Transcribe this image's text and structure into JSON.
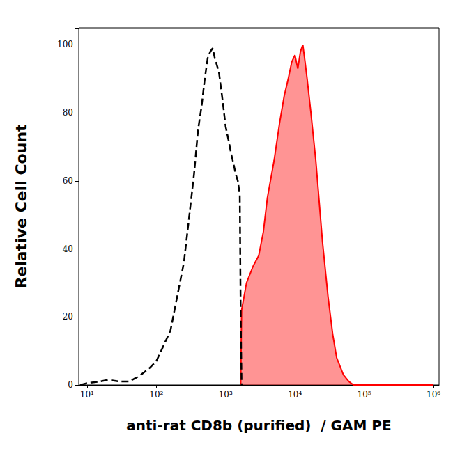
{
  "chart_data": {
    "type": "line",
    "x_label": "anti-rat CD8b (purified)  / GAM PE",
    "y_label": "Relative Cell Count",
    "log": "x",
    "grid": false,
    "xlim": [
      7.6,
      1200000
    ],
    "xticks": [
      {
        "value": 10,
        "label": "10¹"
      },
      {
        "value": 100,
        "label": "10²"
      },
      {
        "value": 1000,
        "label": "10³"
      },
      {
        "value": 10000,
        "label": "10⁴"
      },
      {
        "value": 100000,
        "label": "10⁵"
      },
      {
        "value": 1000000,
        "label": "10⁶"
      }
    ],
    "ylim": [
      0,
      105
    ],
    "yticks": [
      0,
      20,
      40,
      60,
      80,
      100
    ],
    "x": [
      8,
      10,
      15,
      20,
      30,
      40,
      50,
      60,
      80,
      100,
      130,
      160,
      200,
      250,
      300,
      350,
      400,
      450,
      500,
      550,
      600,
      650,
      700,
      800,
      900,
      1000,
      1100,
      1200,
      1300,
      1400,
      1500,
      1600,
      1650,
      1700,
      2000,
      2500,
      3000,
      3500,
      4000,
      5000,
      6000,
      7000,
      8000,
      9000,
      10000,
      11000,
      12000,
      13000,
      14000,
      15000,
      17000,
      20000,
      25000,
      30000,
      35000,
      40000,
      50000,
      60000,
      70000,
      100000,
      1000000
    ],
    "series": [
      {
        "type": "line",
        "color": "#000000",
        "line_style": "dashed",
        "values": [
          0,
          0.5,
          1,
          1.5,
          1,
          1,
          2,
          3,
          5,
          7,
          12,
          16,
          26,
          36,
          50,
          62,
          75,
          82,
          90,
          96,
          98,
          99,
          96,
          92,
          84,
          76,
          72,
          68,
          65,
          62,
          60,
          56,
          20,
          0,
          null,
          null,
          null,
          null,
          null,
          null,
          null,
          null,
          null,
          null,
          null,
          null,
          null,
          null,
          null,
          null,
          null,
          null,
          null,
          null,
          null,
          null,
          null,
          null,
          null,
          null,
          null
        ]
      },
      {
        "type": "area",
        "color": "#ff0000",
        "line_style": "solid",
        "values": [
          null,
          null,
          null,
          null,
          null,
          null,
          null,
          null,
          null,
          null,
          null,
          null,
          null,
          null,
          null,
          null,
          null,
          null,
          null,
          null,
          null,
          null,
          null,
          null,
          null,
          null,
          null,
          null,
          null,
          null,
          null,
          null,
          0,
          22,
          30,
          35,
          38,
          45,
          55,
          66,
          77,
          85,
          90,
          95,
          97,
          93,
          98,
          100,
          95,
          90,
          80,
          66,
          42,
          26,
          15,
          8,
          3,
          1,
          0,
          0,
          0
        ]
      }
    ]
  }
}
